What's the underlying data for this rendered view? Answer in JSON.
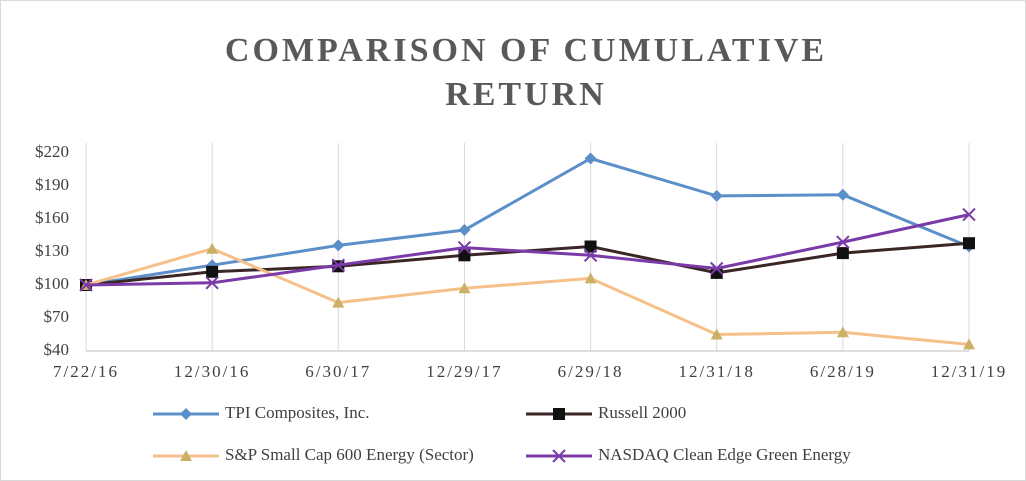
{
  "chart_data": {
    "type": "line",
    "title": "COMPARISON OF CUMULATIVE RETURN",
    "categories": [
      "7/22/16",
      "12/30/16",
      "6/30/17",
      "12/29/17",
      "6/29/18",
      "12/31/18",
      "6/28/19",
      "12/31/19"
    ],
    "series": [
      {
        "name": "TPI Composites, Inc.",
        "color": "#5b8fc9",
        "marker": "diamond",
        "values": [
          100,
          118,
          136,
          150,
          215,
          181,
          182,
          135
        ]
      },
      {
        "name": "Russell 2000",
        "color": "#3b2626",
        "marker": "square",
        "values": [
          100,
          112,
          117,
          127,
          135,
          111,
          129,
          138
        ]
      },
      {
        "name": "S&P Small Cap 600 Energy (Sector)",
        "color": "#f5c08a",
        "marker": "triangle",
        "values": [
          100,
          133,
          84,
          97,
          106,
          55,
          57,
          46
        ]
      },
      {
        "name": "NASDAQ Clean Edge Green Energy",
        "color": "#7a3aa8",
        "marker": "x",
        "values": [
          100,
          102,
          118,
          134,
          127,
          115,
          139,
          164
        ]
      }
    ],
    "ylim": [
      40,
      220
    ],
    "yticks": [
      {
        "value": 40,
        "label": "$40"
      },
      {
        "value": 70,
        "label": "$70"
      },
      {
        "value": 100,
        "label": "$100"
      },
      {
        "value": 130,
        "label": "$130"
      },
      {
        "value": 160,
        "label": "$160"
      },
      {
        "value": 190,
        "label": "$190"
      },
      {
        "value": 220,
        "label": "$220"
      }
    ],
    "grid": true
  }
}
